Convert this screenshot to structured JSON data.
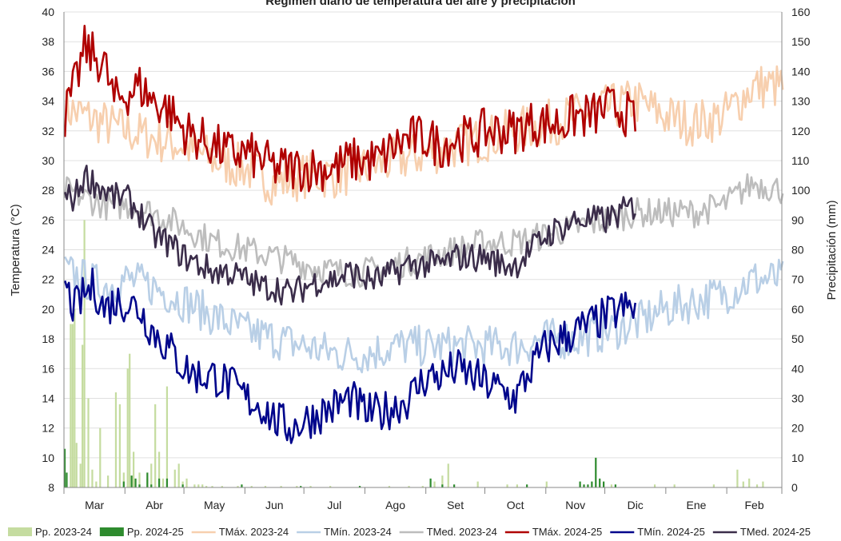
{
  "chart_data": {
    "type": "line",
    "title": "Régimen diario de temperatura del aire y precipitación",
    "ylabel": "Temperatura (°C)",
    "y2label": "Precipitación (mm)",
    "ylim": [
      8,
      40
    ],
    "y2lim": [
      0,
      160
    ],
    "yticks": [
      "8",
      "10",
      "12",
      "14",
      "16",
      "18",
      "20",
      "22",
      "24",
      "26",
      "28",
      "30",
      "32",
      "34",
      "36",
      "38",
      "40"
    ],
    "y2ticks": [
      "0",
      "10",
      "20",
      "30",
      "40",
      "50",
      "60",
      "70",
      "80",
      "90",
      "100",
      "110",
      "120",
      "130",
      "140",
      "150",
      "160"
    ],
    "months": [
      "Mar",
      "Abr",
      "May",
      "Jun",
      "Jul",
      "Ago",
      "Set",
      "Oct",
      "Nov",
      "Dic",
      "Ene",
      "Feb"
    ],
    "month_lengths": [
      31,
      30,
      31,
      30,
      31,
      31,
      30,
      31,
      30,
      31,
      31,
      28
    ],
    "grid": true,
    "legend_position": "bottom",
    "colors": {
      "pp2324": "#c5dca0",
      "pp2425": "#2e8b2e",
      "tmax2324": "#f7cfae",
      "tmin2324": "#b9cfe6",
      "tmed2324": "#bdbdbd",
      "tmax2425": "#b00000",
      "tmin2425": "#00068c",
      "tmed2425": "#3b2d4a"
    },
    "series": [
      {
        "name": "TMáx. 2023-24",
        "key": "tmax2324",
        "kind": "line",
        "width": 2.6,
        "days": [
          0,
          10,
          20,
          31,
          45,
          61,
          76,
          92,
          107,
          122,
          138,
          153,
          168,
          184,
          199,
          214,
          229,
          245,
          260,
          275,
          290,
          305,
          320,
          335,
          350,
          365
        ],
        "values": [
          33.5,
          33,
          32.5,
          32,
          31.5,
          31,
          30,
          29.5,
          28.5,
          29,
          29,
          29.5,
          30,
          30.5,
          31,
          31.5,
          32,
          32.5,
          33,
          33.5,
          34,
          33,
          32.5,
          33,
          35,
          35
        ]
      },
      {
        "name": "TMín. 2023-24",
        "key": "tmin2324",
        "kind": "line",
        "width": 2.6,
        "days": [
          0,
          10,
          20,
          31,
          45,
          61,
          76,
          92,
          107,
          122,
          138,
          153,
          168,
          184,
          199,
          214,
          229,
          245,
          260,
          275,
          290,
          305,
          320,
          335,
          350,
          365
        ],
        "values": [
          22.5,
          22,
          21.5,
          22,
          21.5,
          20.5,
          19.5,
          18.5,
          18,
          17.5,
          17,
          17,
          17.5,
          17.5,
          17.5,
          17.5,
          17.5,
          18,
          18,
          18.5,
          19,
          20,
          20.5,
          21,
          22,
          22
        ]
      },
      {
        "name": "TMed. 2023-24",
        "key": "tmed2324",
        "kind": "line",
        "width": 2.6,
        "days": [
          0,
          10,
          20,
          31,
          45,
          61,
          76,
          92,
          107,
          122,
          138,
          153,
          168,
          184,
          199,
          214,
          229,
          245,
          260,
          275,
          290,
          305,
          320,
          335,
          350,
          365
        ],
        "values": [
          28,
          27.5,
          27,
          27,
          26.5,
          25.5,
          24.5,
          24,
          23.5,
          23,
          22.5,
          22.5,
          23,
          23.5,
          24,
          24.5,
          24.5,
          25,
          25.5,
          26,
          26.5,
          26.5,
          26.5,
          27,
          28.5,
          28
        ]
      },
      {
        "name": "TMáx. 2024-25",
        "key": "tmax2425",
        "kind": "line",
        "width": 2.6,
        "days": [
          0,
          5,
          10,
          15,
          20,
          25,
          31,
          38,
          45,
          52,
          61,
          68,
          76,
          83,
          92,
          100,
          107,
          115,
          122,
          130,
          138,
          145,
          153,
          160,
          168,
          175,
          184,
          191,
          199,
          207,
          214,
          222,
          229,
          237,
          245,
          252,
          260,
          268,
          275,
          283,
          290
        ],
        "values": [
          33,
          35,
          37.5,
          37,
          36.5,
          34,
          34.5,
          35,
          34,
          33.5,
          32,
          31.5,
          31,
          30.5,
          30.5,
          30,
          29.5,
          29.5,
          29.5,
          29.5,
          29.5,
          30,
          30,
          30,
          31,
          31.5,
          31.5,
          31,
          31.5,
          31.5,
          32,
          32,
          32,
          32.5,
          32.5,
          32.5,
          33,
          33,
          33.5,
          33.5,
          32.5
        ]
      },
      {
        "name": "TMín. 2024-25",
        "key": "tmin2425",
        "kind": "line",
        "width": 2.6,
        "days": [
          0,
          5,
          10,
          15,
          20,
          25,
          31,
          38,
          45,
          52,
          61,
          68,
          76,
          83,
          92,
          100,
          107,
          115,
          122,
          130,
          138,
          145,
          153,
          160,
          168,
          175,
          184,
          191,
          199,
          207,
          214,
          222,
          229,
          237,
          245,
          252,
          260,
          268,
          275,
          283,
          290
        ],
        "values": [
          21.5,
          20,
          21,
          21.5,
          20,
          20.5,
          20.5,
          20,
          18.5,
          17.5,
          16,
          15.5,
          15.5,
          15,
          14,
          13.5,
          12.5,
          12,
          12.5,
          13,
          13.5,
          14,
          13,
          13,
          13.5,
          14,
          15.5,
          15.5,
          16,
          15.5,
          15,
          14.5,
          14,
          16,
          17.5,
          18,
          18.5,
          19,
          19.5,
          20,
          20
        ]
      },
      {
        "name": "TMed. 2024-25",
        "key": "tmed2425",
        "kind": "line",
        "width": 2.6,
        "days": [
          0,
          5,
          10,
          15,
          20,
          25,
          31,
          38,
          45,
          52,
          61,
          68,
          76,
          83,
          92,
          100,
          107,
          115,
          122,
          130,
          138,
          145,
          153,
          160,
          168,
          175,
          184,
          191,
          199,
          207,
          214,
          222,
          229,
          237,
          245,
          252,
          260,
          268,
          275,
          283,
          290
        ],
        "values": [
          27.5,
          27.5,
          29,
          28.5,
          28,
          27.5,
          27.5,
          26.5,
          25,
          24.5,
          23.5,
          23,
          22.5,
          22.5,
          22,
          21.5,
          21.5,
          21,
          21.5,
          22,
          22,
          22.5,
          22,
          22,
          22.5,
          23,
          23,
          23,
          23.5,
          23.5,
          23.5,
          23,
          23,
          24,
          25,
          25.5,
          26,
          26,
          26,
          26.5,
          27
        ]
      },
      {
        "name": "Pp. 2023-24",
        "key": "pp2324",
        "kind": "bars",
        "days": [
          3,
          4,
          5,
          6,
          8,
          9,
          10,
          12,
          14,
          16,
          18,
          22,
          26,
          28,
          30,
          32,
          33,
          35,
          38,
          42,
          44,
          46,
          48,
          50,
          52,
          56,
          58,
          60,
          62,
          66,
          68,
          70,
          72,
          75,
          80,
          88,
          95,
          102,
          110,
          118,
          125,
          135,
          150,
          165,
          175,
          182,
          188,
          192,
          195,
          210,
          225,
          230,
          245,
          262,
          270,
          278,
          300,
          310,
          330,
          342,
          345,
          348,
          352,
          355
        ],
        "values": [
          55,
          55,
          60,
          15,
          8,
          48,
          90,
          30,
          6,
          2,
          20,
          4,
          32,
          28,
          5,
          40,
          45,
          12,
          5,
          3,
          8,
          28,
          12,
          3,
          34,
          6,
          8,
          2,
          3,
          1,
          1,
          1,
          0.5,
          0.5,
          0.5,
          0.5,
          0.5,
          0.5,
          0.5,
          0.5,
          0.5,
          0.5,
          0.5,
          0.5,
          0.5,
          0.5,
          2,
          4,
          8,
          2,
          1,
          1,
          2,
          1,
          0.5,
          1,
          1,
          1,
          1,
          6,
          2,
          3,
          1,
          2
        ]
      },
      {
        "name": "Pp. 2024-25",
        "key": "pp2425",
        "kind": "bars",
        "days": [
          0,
          1,
          30,
          34,
          36,
          38,
          42,
          44,
          48,
          52,
          60,
          90,
          120,
          150,
          186,
          192,
          198,
          235,
          262,
          264,
          266,
          268,
          270,
          272,
          274,
          280
        ],
        "values": [
          13,
          5,
          2,
          4,
          3,
          1,
          5,
          1,
          3,
          3,
          1,
          1,
          0.5,
          0.5,
          3,
          1,
          1,
          1,
          2,
          1,
          1,
          2,
          10,
          3,
          2,
          1
        ]
      }
    ],
    "legend": [
      {
        "label": "Pp. 2023-24",
        "key": "pp2324",
        "kind": "box"
      },
      {
        "label": "Pp. 2024-25",
        "key": "pp2425",
        "kind": "box"
      },
      {
        "label": "TMáx. 2023-24",
        "key": "tmax2324",
        "kind": "line"
      },
      {
        "label": "TMín. 2023-24",
        "key": "tmin2324",
        "kind": "line"
      },
      {
        "label": "TMed. 2023-24",
        "key": "tmed2324",
        "kind": "line"
      },
      {
        "label": "TMáx. 2024-25",
        "key": "tmax2425",
        "kind": "line"
      },
      {
        "label": "TMín. 2024-25",
        "key": "tmin2425",
        "kind": "line"
      },
      {
        "label": "TMed. 2024-25",
        "key": "tmed2425",
        "kind": "line"
      }
    ]
  }
}
